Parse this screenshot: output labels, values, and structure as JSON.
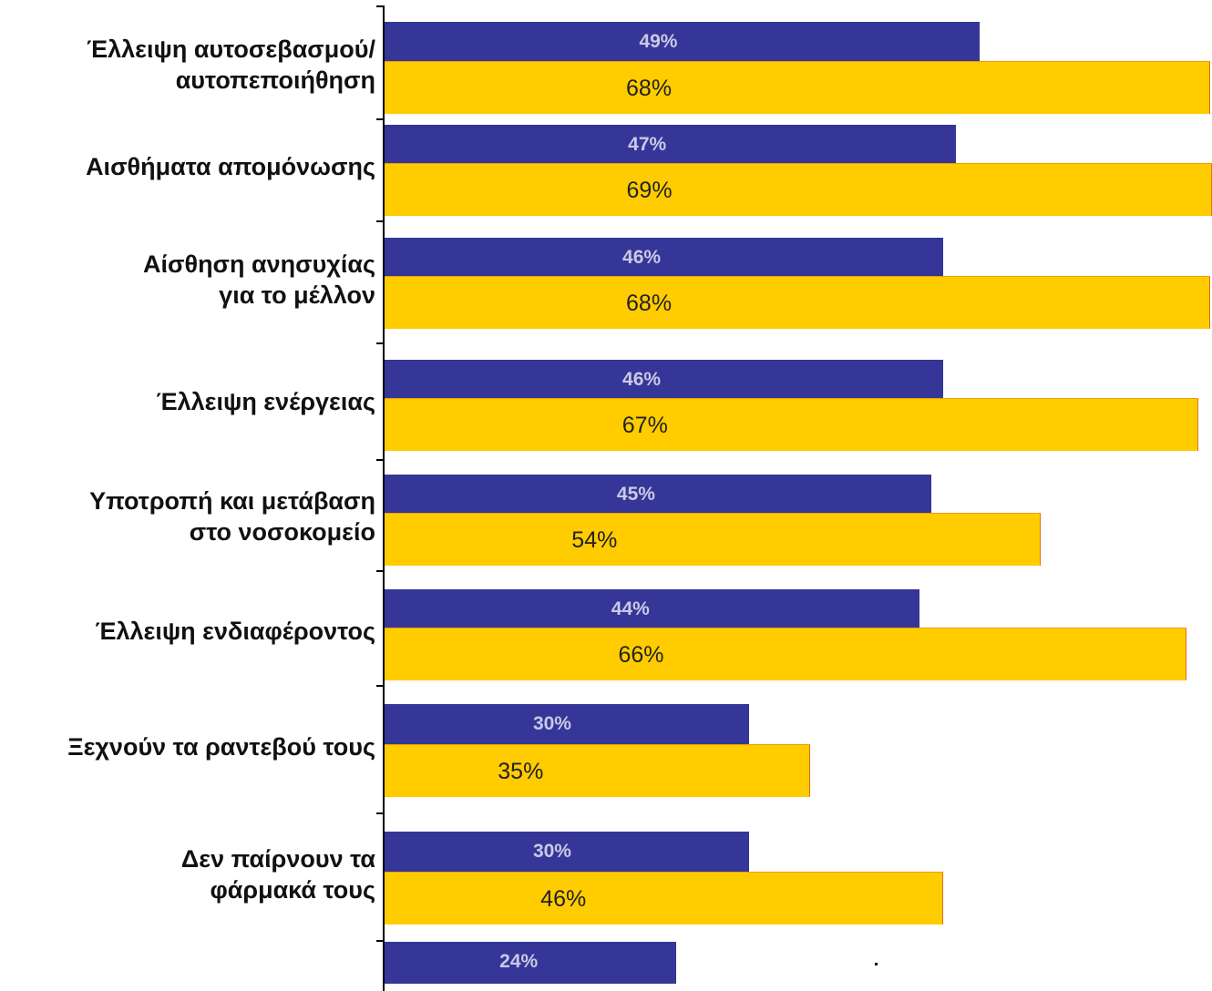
{
  "chart_data": {
    "type": "bar",
    "orientation": "horizontal",
    "categories": [
      [
        "Έλλειψη αυτοσεβασμού/",
        "αυτοπεποιήθηση"
      ],
      [
        "Αισθήματα απομόνωσης"
      ],
      [
        "Αίσθηση ανησυχίας",
        "για το μέλλον"
      ],
      [
        "Έλλειψη ενέργειας"
      ],
      [
        "Υποτροπή και μετάβαση",
        "στο νοσοκομείο"
      ],
      [
        "Έλλειψη ενδιαφέροντος"
      ],
      [
        "Ξεχνούν τα ραντεβού τους"
      ],
      [
        "Δεν παίρνουν τα",
        "φάρμακά τους"
      ],
      []
    ],
    "series": [
      {
        "values": [
          49,
          47,
          46,
          46,
          45,
          44,
          30,
          30,
          24
        ],
        "labels": [
          "49%",
          "47%",
          "46%",
          "46%",
          "45%",
          "44%",
          "30%",
          "30%",
          "24%"
        ],
        "color": "#363698"
      },
      {
        "values": [
          68,
          69,
          68,
          67,
          54,
          66,
          35,
          46,
          null
        ],
        "labels": [
          "68%",
          "69%",
          "68%",
          "67%",
          "54%",
          "66%",
          "35%",
          "46%",
          ""
        ],
        "color": "#ffcc00"
      }
    ],
    "xlim": [
      0,
      68
    ],
    "unit": "%",
    "grid": false,
    "legend": "none",
    "title": "",
    "xlabel": "",
    "ylabel": ""
  }
}
